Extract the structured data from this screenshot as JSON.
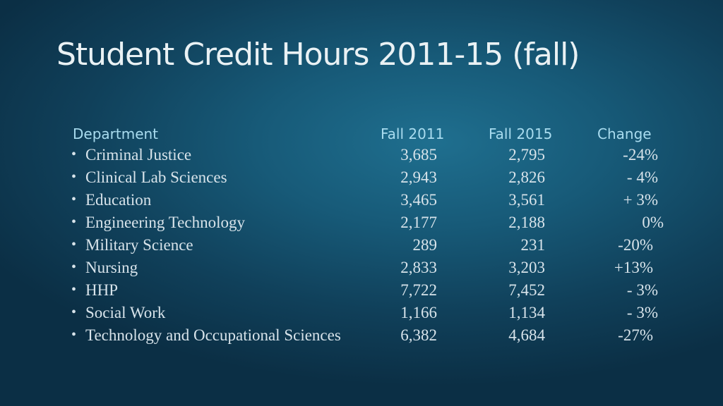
{
  "title": "Student Credit Hours 2011-15 (fall)",
  "headers": {
    "department": "Department",
    "fall2011": "Fall 2011",
    "fall2015": "Fall 2015",
    "change": "Change"
  },
  "rows": [
    {
      "department": "Criminal Justice",
      "fall2011": "3,685",
      "fall2015": "2,795",
      "change": "-24%"
    },
    {
      "department": "Clinical Lab Sciences",
      "fall2011": "2,943",
      "fall2015": "2,826",
      "change": "-  4%"
    },
    {
      "department": "Education",
      "fall2011": "3,465",
      "fall2015": "3,561",
      "change": "+ 3%"
    },
    {
      "department": "Engineering Technology",
      "fall2011": "2,177",
      "fall2015": "2,188",
      "change": "0%"
    },
    {
      "department": "Military Science",
      "fall2011": "289",
      "fall2015": "231",
      "change": "-20%"
    },
    {
      "department": "Nursing",
      "fall2011": "2,833",
      "fall2015": "3,203",
      "change": "+13%"
    },
    {
      "department": "HHP",
      "fall2011": "7,722",
      "fall2015": "7,452",
      "change": "-  3%"
    },
    {
      "department": "Social Work",
      "fall2011": "1,166",
      "fall2015": "1,134",
      "change": "-  3%"
    },
    {
      "department": "Technology and Occupational Sciences",
      "fall2011": "6,382",
      "fall2015": "4,684",
      "change": "-27%"
    }
  ]
}
